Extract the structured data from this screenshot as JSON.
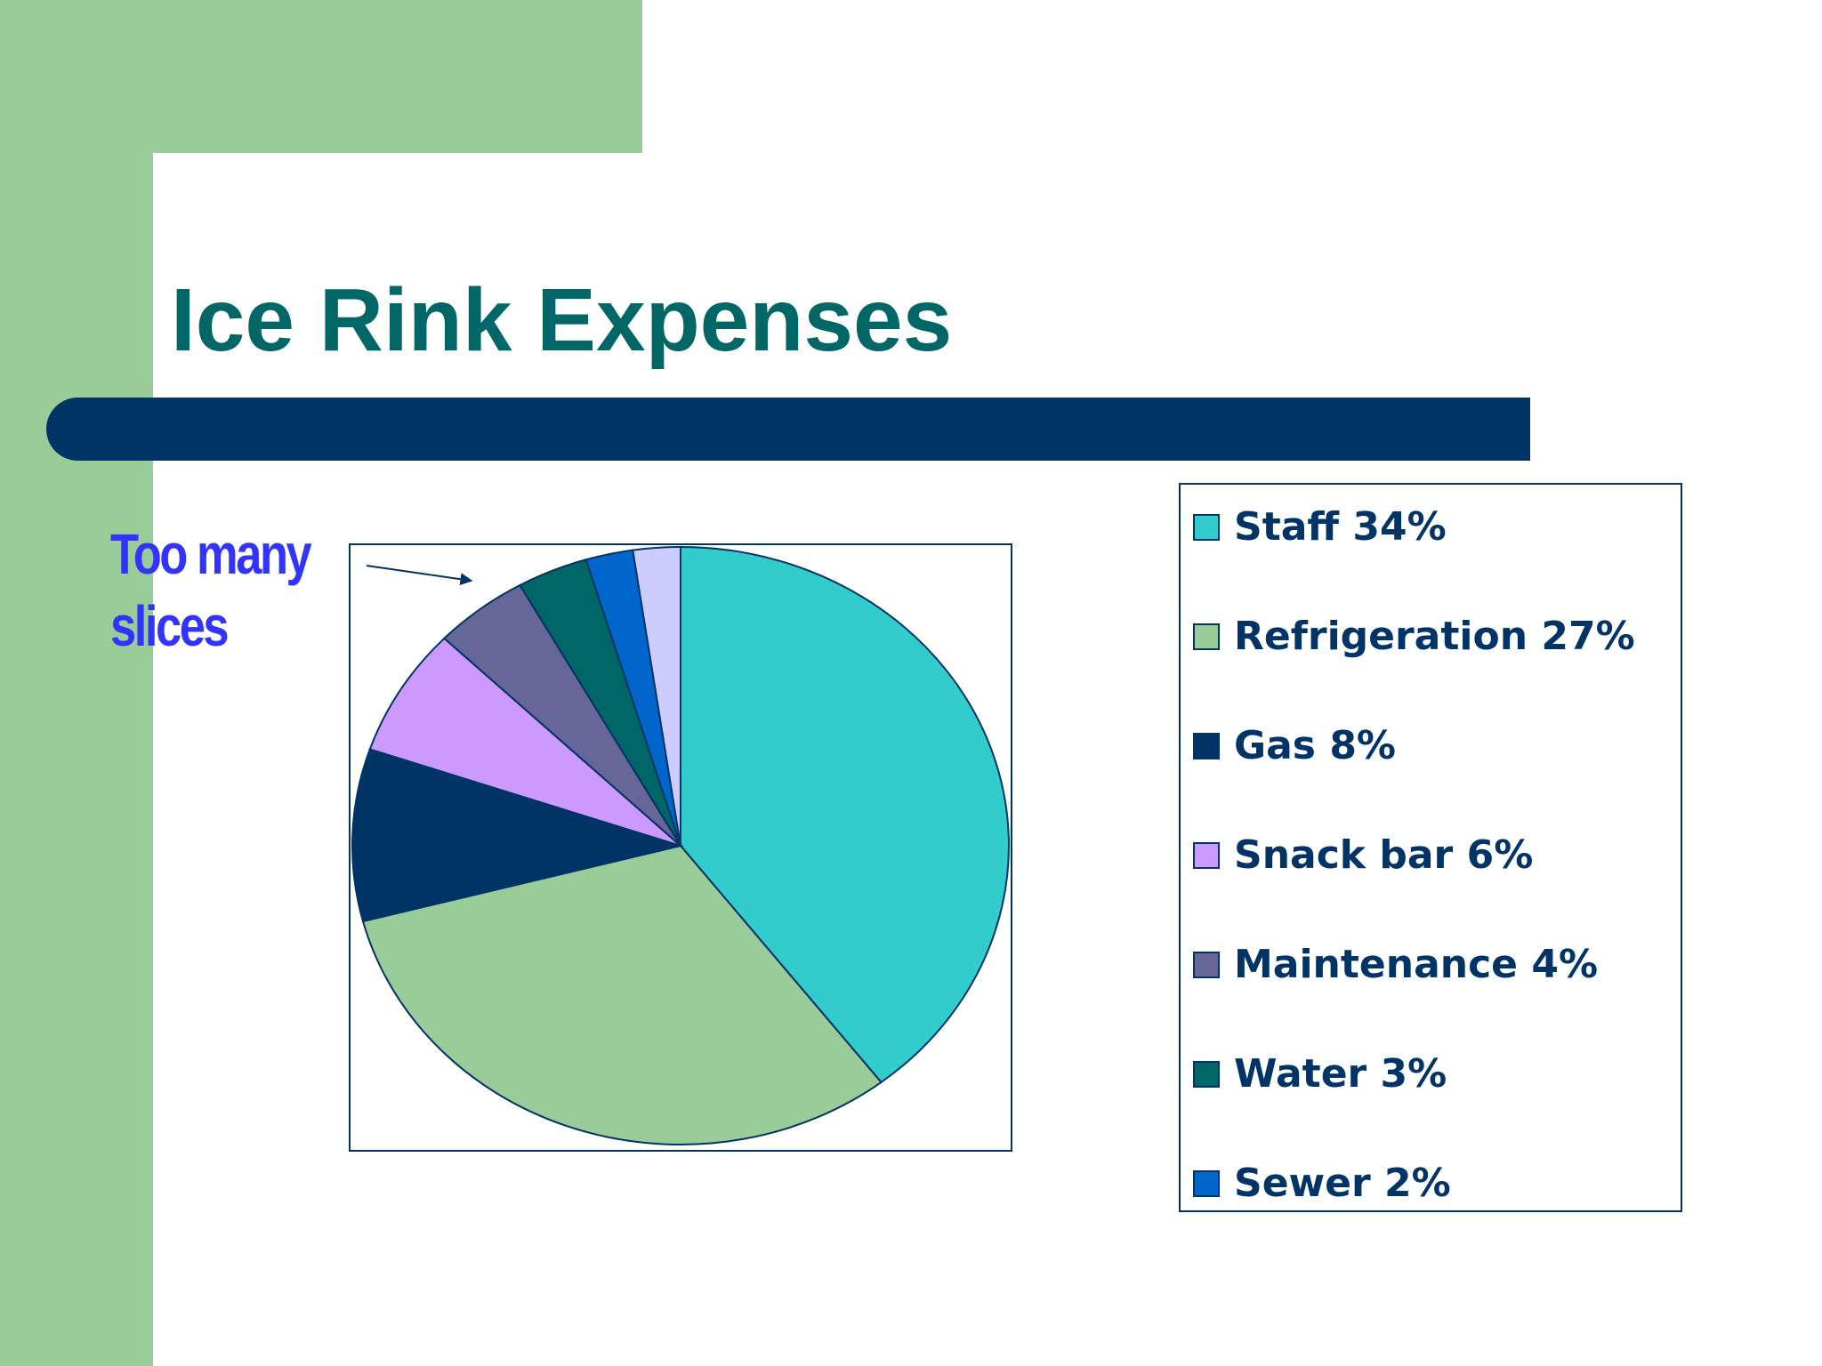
{
  "slide": {
    "title": "Ice Rink Expenses",
    "annotation_lines": [
      "Too many",
      "slices"
    ]
  },
  "colors": {
    "green": "#99cc99",
    "navy": "#003366",
    "title": "#006666",
    "annotation": "#3333ff"
  },
  "chart_data": {
    "type": "pie",
    "title": "",
    "categories": [
      "Staff",
      "Refrigeration",
      "Gas",
      "Snack bar",
      "Maintenance",
      "Water",
      "Sewer",
      ""
    ],
    "values": [
      34,
      27,
      8,
      6,
      4,
      3,
      2,
      2
    ],
    "legend_labels": [
      "Staff 34%",
      "Refrigeration 27%",
      "Gas 8%",
      "Snack bar 6%",
      "Maintenance 4%",
      "Water 3%",
      "Sewer 2%"
    ],
    "colors": [
      "#33cccc",
      "#99cc99",
      "#003366",
      "#cc99ff",
      "#666699",
      "#006666",
      "#0066cc",
      "#ccccff"
    ],
    "legend_position": "right",
    "start_angle": "12 o'clock",
    "direction": "clockwise"
  }
}
